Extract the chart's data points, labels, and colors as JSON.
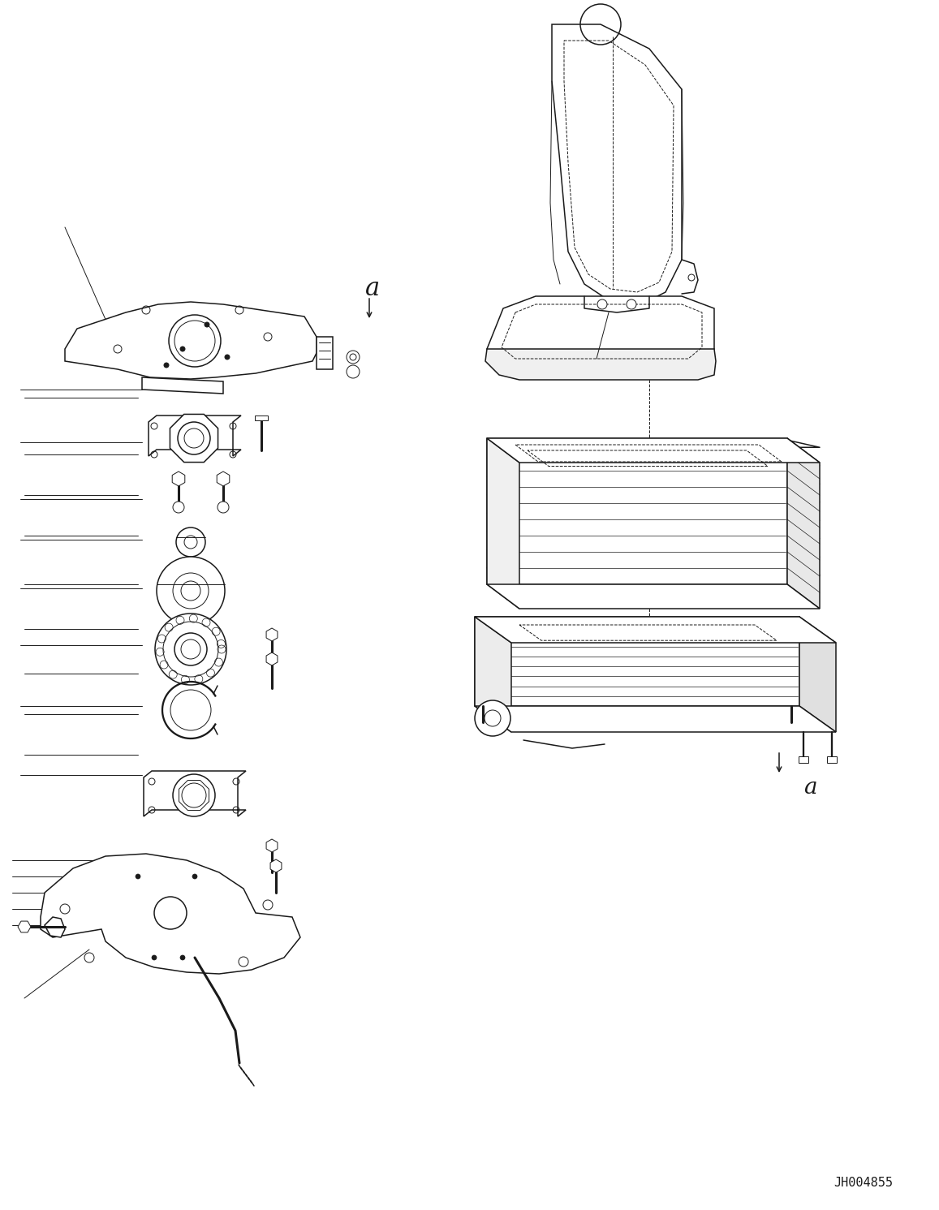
{
  "background_color": "#ffffff",
  "line_color": "#1a1a1a",
  "lw": 1.1,
  "tlw": 0.7,
  "fig_width": 11.57,
  "fig_height": 14.91,
  "dpi": 100,
  "code_text": "JH004855",
  "label_a": "a"
}
